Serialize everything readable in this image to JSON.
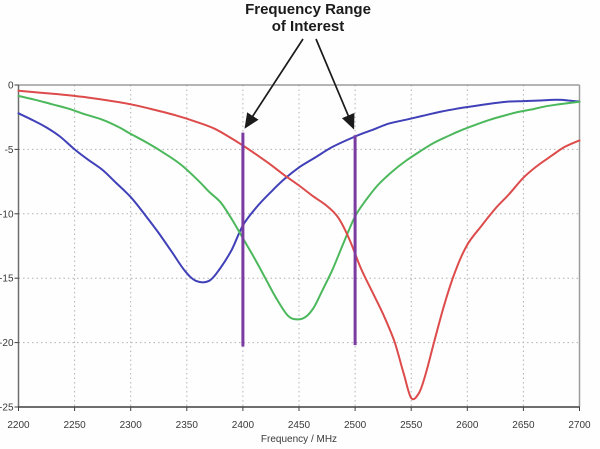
{
  "annotation": {
    "line1": "Frequency Range",
    "line2": "of Interest",
    "full_label": "Frequency Range of Interest"
  },
  "chart_data": {
    "type": "line",
    "title": "Frequency Range of Interest",
    "xlabel": "Frequency / MHz",
    "ylabel": "",
    "xlim": [
      2200,
      2700
    ],
    "ylim": [
      -25,
      0
    ],
    "x_ticks": [
      2200,
      2250,
      2300,
      2350,
      2400,
      2450,
      2500,
      2550,
      2600,
      2650,
      2700
    ],
    "y_ticks": [
      0,
      -5,
      -10,
      -15,
      -20,
      -25
    ],
    "grid": true,
    "legend": "none",
    "series": [
      {
        "name": "blue-curve",
        "color": "#4040b8",
        "points": [
          [
            2200,
            -2.2
          ],
          [
            2212,
            -2.7
          ],
          [
            2225,
            -3.3
          ],
          [
            2237,
            -4.0
          ],
          [
            2250,
            -5.0
          ],
          [
            2262,
            -5.8
          ],
          [
            2275,
            -6.6
          ],
          [
            2287,
            -7.6
          ],
          [
            2300,
            -8.7
          ],
          [
            2312,
            -10.0
          ],
          [
            2325,
            -11.5
          ],
          [
            2337,
            -13.0
          ],
          [
            2348,
            -14.4
          ],
          [
            2358,
            -15.2
          ],
          [
            2370,
            -15.2
          ],
          [
            2380,
            -14.2
          ],
          [
            2390,
            -12.8
          ],
          [
            2400,
            -10.9
          ],
          [
            2412,
            -9.5
          ],
          [
            2425,
            -8.3
          ],
          [
            2437,
            -7.3
          ],
          [
            2450,
            -6.4
          ],
          [
            2465,
            -5.6
          ],
          [
            2480,
            -4.8
          ],
          [
            2500,
            -4.0
          ],
          [
            2515,
            -3.5
          ],
          [
            2530,
            -3.0
          ],
          [
            2545,
            -2.7
          ],
          [
            2560,
            -2.4
          ],
          [
            2575,
            -2.1
          ],
          [
            2590,
            -1.85
          ],
          [
            2605,
            -1.65
          ],
          [
            2620,
            -1.45
          ],
          [
            2635,
            -1.3
          ],
          [
            2650,
            -1.25
          ],
          [
            2665,
            -1.2
          ],
          [
            2680,
            -1.15
          ],
          [
            2690,
            -1.2
          ],
          [
            2700,
            -1.3
          ]
        ]
      },
      {
        "name": "green-curve",
        "color": "#4cb85c",
        "points": [
          [
            2200,
            -0.85
          ],
          [
            2215,
            -1.15
          ],
          [
            2230,
            -1.5
          ],
          [
            2245,
            -1.85
          ],
          [
            2260,
            -2.3
          ],
          [
            2275,
            -2.7
          ],
          [
            2290,
            -3.3
          ],
          [
            2300,
            -3.8
          ],
          [
            2315,
            -4.5
          ],
          [
            2330,
            -5.3
          ],
          [
            2345,
            -6.2
          ],
          [
            2360,
            -7.4
          ],
          [
            2370,
            -8.3
          ],
          [
            2380,
            -9.1
          ],
          [
            2390,
            -10.4
          ],
          [
            2400,
            -11.9
          ],
          [
            2410,
            -13.4
          ],
          [
            2420,
            -15.0
          ],
          [
            2430,
            -16.6
          ],
          [
            2440,
            -17.9
          ],
          [
            2448,
            -18.2
          ],
          [
            2456,
            -18.0
          ],
          [
            2463,
            -17.3
          ],
          [
            2470,
            -16.1
          ],
          [
            2480,
            -14.3
          ],
          [
            2490,
            -12.2
          ],
          [
            2500,
            -10.2
          ],
          [
            2510,
            -8.9
          ],
          [
            2520,
            -7.8
          ],
          [
            2532,
            -6.8
          ],
          [
            2545,
            -5.9
          ],
          [
            2557,
            -5.2
          ],
          [
            2570,
            -4.5
          ],
          [
            2582,
            -4.0
          ],
          [
            2595,
            -3.5
          ],
          [
            2607,
            -3.1
          ],
          [
            2620,
            -2.7
          ],
          [
            2632,
            -2.4
          ],
          [
            2645,
            -2.1
          ],
          [
            2657,
            -1.9
          ],
          [
            2670,
            -1.65
          ],
          [
            2682,
            -1.5
          ],
          [
            2700,
            -1.3
          ]
        ]
      },
      {
        "name": "red-curve",
        "color": "#dd4b4b",
        "points": [
          [
            2200,
            -0.45
          ],
          [
            2220,
            -0.6
          ],
          [
            2240,
            -0.75
          ],
          [
            2260,
            -0.95
          ],
          [
            2280,
            -1.2
          ],
          [
            2300,
            -1.5
          ],
          [
            2320,
            -1.9
          ],
          [
            2340,
            -2.35
          ],
          [
            2360,
            -2.9
          ],
          [
            2375,
            -3.4
          ],
          [
            2390,
            -4.15
          ],
          [
            2400,
            -4.7
          ],
          [
            2412,
            -5.4
          ],
          [
            2425,
            -6.2
          ],
          [
            2437,
            -7.0
          ],
          [
            2450,
            -7.8
          ],
          [
            2462,
            -8.6
          ],
          [
            2475,
            -9.4
          ],
          [
            2485,
            -10.3
          ],
          [
            2495,
            -12.0
          ],
          [
            2505,
            -14.2
          ],
          [
            2515,
            -16.0
          ],
          [
            2525,
            -17.8
          ],
          [
            2535,
            -19.9
          ],
          [
            2543,
            -22.3
          ],
          [
            2550,
            -24.3
          ],
          [
            2557,
            -23.9
          ],
          [
            2563,
            -22.4
          ],
          [
            2570,
            -20.1
          ],
          [
            2580,
            -16.9
          ],
          [
            2590,
            -14.3
          ],
          [
            2600,
            -12.4
          ],
          [
            2612,
            -11.0
          ],
          [
            2625,
            -9.6
          ],
          [
            2637,
            -8.5
          ],
          [
            2650,
            -7.2
          ],
          [
            2662,
            -6.3
          ],
          [
            2675,
            -5.5
          ],
          [
            2687,
            -4.8
          ],
          [
            2700,
            -4.3
          ]
        ]
      }
    ],
    "markers": [
      {
        "name": "range-start-marker",
        "freq": 2400,
        "from": -3.7,
        "to": -20.3,
        "color": "#7b3ca2"
      },
      {
        "name": "range-end-marker",
        "freq": 2500,
        "from": -3.9,
        "to": -20.2,
        "color": "#7b3ca2"
      }
    ]
  },
  "palette": {
    "grid": "#b2b2b2",
    "axis_dark": "#3f3f3f",
    "axis_light": "#9b9b9b",
    "tick_text": "#3a3a3a",
    "arrow": "#1b1b1b",
    "background": "#fefefe"
  }
}
